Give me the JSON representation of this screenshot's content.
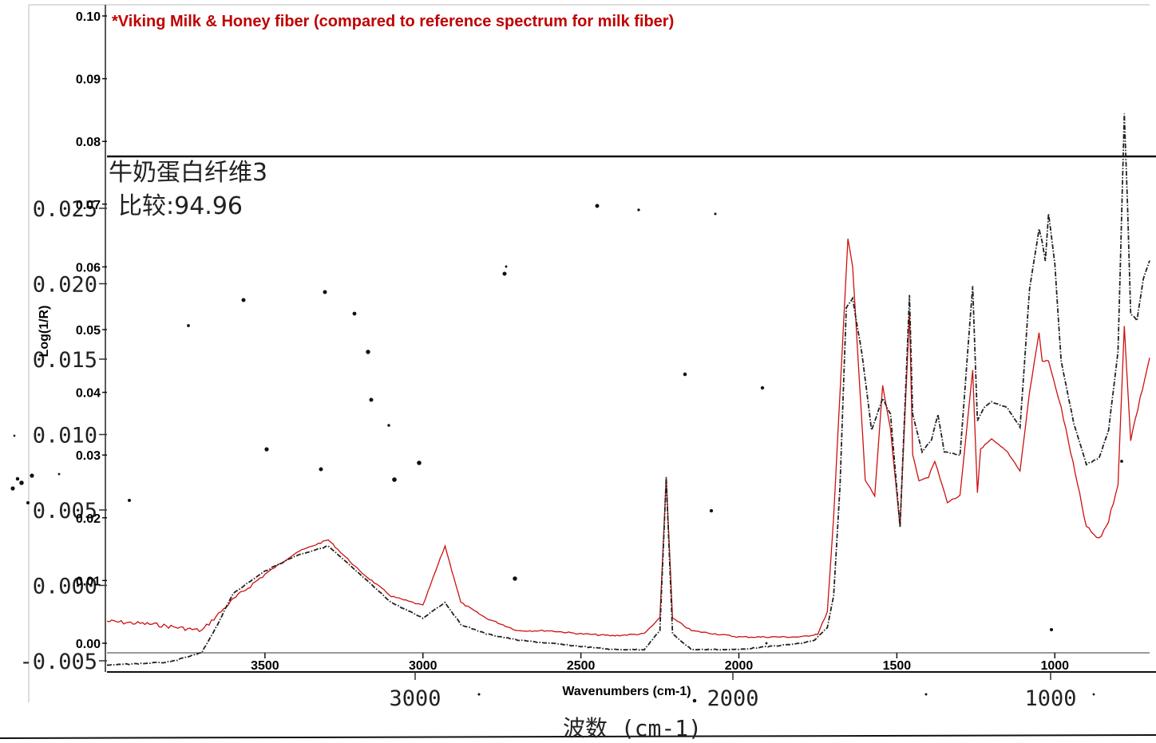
{
  "chart_data": [
    {
      "type": "line",
      "title": "*Viking Milk & Honey fiber (compared to reference spectrum for milk fiber)",
      "xlabel": "Wavenumbers (cm-1)",
      "ylabel": "Log(1/R)",
      "x_reversed": true,
      "xlim": [
        4000,
        700
      ],
      "ylim": [
        0.0,
        0.1
      ],
      "x_ticks": [
        3500,
        3000,
        2500,
        2000,
        1500,
        1000
      ],
      "x_tick_labels": [
        "3500",
        "3000",
        "2500",
        "2000",
        "1500",
        "1000"
      ],
      "y_ticks": [
        0.0,
        0.01,
        0.02,
        0.03,
        0.04,
        0.05,
        0.06,
        0.07,
        0.08,
        0.09,
        0.1
      ],
      "y_tick_labels": [
        "0.00",
        "0.01",
        "0.02",
        "0.03",
        "0.04",
        "0.05",
        "0.06",
        "0.07",
        "0.08",
        "0.09",
        "0.10"
      ],
      "series": [
        {
          "color": "#cc1111",
          "style": "solid",
          "x": [
            4000,
            3850,
            3700,
            3600,
            3500,
            3400,
            3300,
            3200,
            3100,
            3000,
            2960,
            2930,
            2880,
            2800,
            2700,
            2600,
            2500,
            2400,
            2300,
            2250,
            2230,
            2210,
            2150,
            2000,
            1900,
            1800,
            1750,
            1720,
            1700,
            1680,
            1655,
            1640,
            1600,
            1570,
            1545,
            1520,
            1490,
            1460,
            1450,
            1430,
            1400,
            1380,
            1340,
            1300,
            1260,
            1245,
            1235,
            1200,
            1150,
            1110,
            1080,
            1050,
            1040,
            1020,
            980,
            950,
            900,
            860,
            830,
            800,
            780,
            760,
            700
          ],
          "y": [
            0.0035,
            0.003,
            0.002,
            0.007,
            0.011,
            0.0145,
            0.0165,
            0.0115,
            0.0075,
            0.006,
            0.0115,
            0.0155,
            0.0065,
            0.004,
            0.002,
            0.002,
            0.0015,
            0.0012,
            0.0015,
            0.004,
            0.0265,
            0.004,
            0.002,
            0.001,
            0.001,
            0.001,
            0.0015,
            0.005,
            0.02,
            0.04,
            0.0645,
            0.06,
            0.026,
            0.0235,
            0.041,
            0.034,
            0.0185,
            0.053,
            0.03,
            0.026,
            0.0265,
            0.029,
            0.0225,
            0.0235,
            0.0435,
            0.024,
            0.031,
            0.0325,
            0.0305,
            0.0275,
            0.04,
            0.0495,
            0.045,
            0.045,
            0.0375,
            0.0305,
            0.0185,
            0.0165,
            0.0195,
            0.0255,
            0.0505,
            0.0325,
            0.0455
          ]
        },
        {
          "color": "#222222",
          "style": "dash-dot",
          "x": [
            4000,
            3800,
            3700,
            3650,
            3600,
            3500,
            3400,
            3300,
            3200,
            3100,
            3000,
            2960,
            2930,
            2880,
            2800,
            2700,
            2600,
            2500,
            2400,
            2300,
            2250,
            2230,
            2210,
            2150,
            2000,
            1900,
            1800,
            1760,
            1720,
            1700,
            1680,
            1660,
            1640,
            1610,
            1580,
            1545,
            1520,
            1490,
            1460,
            1450,
            1420,
            1390,
            1370,
            1350,
            1300,
            1260,
            1245,
            1225,
            1200,
            1150,
            1110,
            1080,
            1050,
            1040,
            1030,
            1020,
            1000,
            980,
            940,
            900,
            860,
            830,
            800,
            780,
            770,
            760,
            740,
            720,
            700
          ],
          "y": [
            -0.0035,
            -0.003,
            -0.0015,
            0.003,
            0.008,
            0.0115,
            0.014,
            0.0155,
            0.011,
            0.0065,
            0.004,
            0.0055,
            0.0065,
            0.003,
            0.0015,
            0.0005,
            0.0,
            -0.0005,
            -0.001,
            -0.001,
            0.002,
            0.0265,
            0.0015,
            -0.001,
            -0.001,
            -0.0005,
            0.0,
            0.0005,
            0.0025,
            0.0075,
            0.025,
            0.0535,
            0.055,
            0.046,
            0.034,
            0.039,
            0.0365,
            0.0185,
            0.0555,
            0.0365,
            0.0305,
            0.0325,
            0.0365,
            0.0305,
            0.03,
            0.057,
            0.0355,
            0.0375,
            0.0385,
            0.0375,
            0.0345,
            0.0565,
            0.066,
            0.064,
            0.061,
            0.0685,
            0.0605,
            0.045,
            0.035,
            0.0285,
            0.0295,
            0.034,
            0.0465,
            0.0845,
            0.07,
            0.0525,
            0.0515,
            0.058,
            0.061
          ]
        }
      ]
    },
    {
      "type": "line",
      "title": "牛奶蛋白纤维3",
      "subtitle": "比较:94.96",
      "xlabel": "波数 (cm-1)",
      "x_reversed": true,
      "x_ticks": [
        3000,
        2000,
        1000
      ],
      "x_tick_labels": [
        "3000",
        "2000",
        "1000"
      ],
      "y_ticks": [
        -0.005,
        0.0,
        0.005,
        0.01,
        0.015,
        0.02,
        0.025
      ],
      "y_tick_labels": [
        "-0.005",
        "0.000",
        "0.005",
        "0.010",
        "0.015",
        "0.020",
        "0.025"
      ]
    }
  ]
}
